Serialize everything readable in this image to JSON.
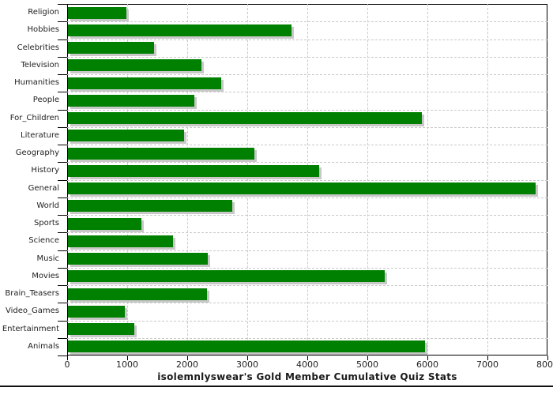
{
  "chart_data": {
    "type": "bar",
    "orientation": "horizontal",
    "title": "isolemnlyswear's Gold Member Cumulative Quiz Stats",
    "categories": [
      "Religion",
      "Hobbies",
      "Celebrities",
      "Television",
      "Humanities",
      "People",
      "For_Children",
      "Literature",
      "Geography",
      "History",
      "General",
      "World",
      "Sports",
      "Science",
      "Music",
      "Movies",
      "Brain_Teasers",
      "Video_Games",
      "Entertainment",
      "Animals"
    ],
    "values": [
      970,
      3720,
      1430,
      2220,
      2550,
      2100,
      5900,
      1930,
      3100,
      4180,
      7790,
      2740,
      1220,
      1750,
      2330,
      5280,
      2320,
      950,
      1100,
      5950
    ],
    "xlabel": "",
    "ylabel": "",
    "xlim": [
      0,
      8000
    ],
    "x_ticks": [
      0,
      1000,
      2000,
      3000,
      4000,
      5000,
      6000,
      7000,
      8000
    ],
    "grid": true,
    "legend": "none",
    "bar_color": "#008000",
    "bar_shadow_color": "#c8c8c8",
    "grid_color": "#c9c9c9",
    "axis_color": "#000000",
    "text_color": "#222222"
  }
}
